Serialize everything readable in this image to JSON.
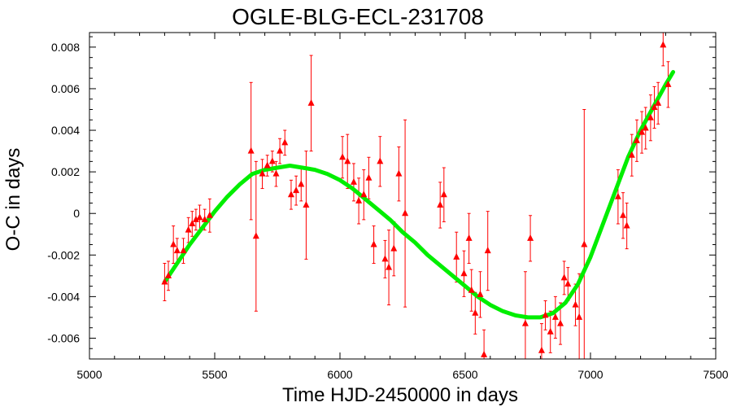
{
  "chart_data": {
    "type": "scatter",
    "title": "OGLE-BLG-ECL-231708",
    "xlabel": "Time HJD-2450000 in days",
    "ylabel": "O-C in days",
    "xlim": [
      5000,
      7500
    ],
    "ylim": [
      -0.007,
      0.0087
    ],
    "xticks": [
      "5000",
      "5500",
      "6000",
      "6500",
      "7000",
      "7500"
    ],
    "yticks": [
      "-0.006",
      "-0.004",
      "-0.002",
      "0",
      "0.002",
      "0.004",
      "0.006",
      "0.008"
    ],
    "grid": false,
    "colors": {
      "points": "#ff0000",
      "fit": "#00ee00",
      "axes": "#000000"
    },
    "series": [
      {
        "kind": "points-with-errorbars",
        "points": [
          {
            "x": 5300,
            "y": -0.0033,
            "err": 0.0009
          },
          {
            "x": 5315,
            "y": -0.003,
            "err": 0.0007
          },
          {
            "x": 5335,
            "y": -0.0015,
            "err": 0.0009
          },
          {
            "x": 5350,
            "y": -0.0018,
            "err": 0.0006
          },
          {
            "x": 5375,
            "y": -0.0018,
            "err": 0.0006
          },
          {
            "x": 5395,
            "y": -0.0008,
            "err": 0.0006
          },
          {
            "x": 5410,
            "y": -0.0005,
            "err": 0.0006
          },
          {
            "x": 5425,
            "y": -0.0003,
            "err": 0.0005
          },
          {
            "x": 5440,
            "y": -0.0002,
            "err": 0.0006
          },
          {
            "x": 5460,
            "y": -0.0003,
            "err": 0.0005
          },
          {
            "x": 5480,
            "y": -0.0001,
            "err": 0.0008
          },
          {
            "x": 5645,
            "y": 0.003,
            "err": 0.0033
          },
          {
            "x": 5665,
            "y": -0.0011,
            "err": 0.0036
          },
          {
            "x": 5690,
            "y": 0.0019,
            "err": 0.0007
          },
          {
            "x": 5710,
            "y": 0.0023,
            "err": 0.0005
          },
          {
            "x": 5730,
            "y": 0.0025,
            "err": 0.0005
          },
          {
            "x": 5745,
            "y": 0.0019,
            "err": 0.0006
          },
          {
            "x": 5760,
            "y": 0.003,
            "err": 0.0006
          },
          {
            "x": 5780,
            "y": 0.0034,
            "err": 0.0006
          },
          {
            "x": 5805,
            "y": 0.0009,
            "err": 0.0007
          },
          {
            "x": 5825,
            "y": 0.0011,
            "err": 0.0007
          },
          {
            "x": 5845,
            "y": 0.0014,
            "err": 0.0008
          },
          {
            "x": 5865,
            "y": 0.0004,
            "err": 0.0026
          },
          {
            "x": 5885,
            "y": 0.0053,
            "err": 0.0023
          },
          {
            "x": 6010,
            "y": 0.0027,
            "err": 0.001
          },
          {
            "x": 6030,
            "y": 0.0025,
            "err": 0.0013
          },
          {
            "x": 6055,
            "y": 0.0015,
            "err": 0.0009
          },
          {
            "x": 6075,
            "y": 0.0006,
            "err": 0.0011
          },
          {
            "x": 6095,
            "y": 0.0009,
            "err": 0.0012
          },
          {
            "x": 6115,
            "y": 0.0017,
            "err": 0.001
          },
          {
            "x": 6135,
            "y": -0.0015,
            "err": 0.0009
          },
          {
            "x": 6160,
            "y": 0.0025,
            "err": 0.0012
          },
          {
            "x": 6180,
            "y": -0.0022,
            "err": 0.0009
          },
          {
            "x": 6195,
            "y": -0.0026,
            "err": 0.0018
          },
          {
            "x": 6215,
            "y": -0.0017,
            "err": 0.0013
          },
          {
            "x": 6235,
            "y": 0.0019,
            "err": 0.0013
          },
          {
            "x": 6260,
            "y": 0.0,
            "err": 0.0045
          },
          {
            "x": 6400,
            "y": 0.0004,
            "err": 0.0011
          },
          {
            "x": 6415,
            "y": 0.0009,
            "err": 0.0013
          },
          {
            "x": 6465,
            "y": -0.0021,
            "err": 0.0012
          },
          {
            "x": 6495,
            "y": -0.0029,
            "err": 0.0011
          },
          {
            "x": 6515,
            "y": -0.0012,
            "err": 0.0012
          },
          {
            "x": 6525,
            "y": -0.0037,
            "err": 0.001
          },
          {
            "x": 6540,
            "y": -0.0048,
            "err": 0.001
          },
          {
            "x": 6560,
            "y": -0.0039,
            "err": 0.0011
          },
          {
            "x": 6575,
            "y": -0.0068,
            "err": 0.0012
          },
          {
            "x": 6590,
            "y": -0.0018,
            "err": 0.0019
          },
          {
            "x": 6740,
            "y": -0.0053,
            "err": 0.0025
          },
          {
            "x": 6760,
            "y": -0.0012,
            "err": 0.0011
          },
          {
            "x": 6805,
            "y": -0.0066,
            "err": 0.0013
          },
          {
            "x": 6820,
            "y": -0.0049,
            "err": 0.0007
          },
          {
            "x": 6840,
            "y": -0.0057,
            "err": 0.001
          },
          {
            "x": 6860,
            "y": -0.005,
            "err": 0.001
          },
          {
            "x": 6880,
            "y": -0.0053,
            "err": 0.001
          },
          {
            "x": 6895,
            "y": -0.0031,
            "err": 0.0008
          },
          {
            "x": 6910,
            "y": -0.0034,
            "err": 0.0008
          },
          {
            "x": 6940,
            "y": -0.0044,
            "err": 0.001
          },
          {
            "x": 6955,
            "y": -0.005,
            "err": 0.0021
          },
          {
            "x": 6975,
            "y": -0.0015,
            "err": 0.0065
          },
          {
            "x": 7110,
            "y": 0.0008,
            "err": 0.0013
          },
          {
            "x": 7130,
            "y": -0.0001,
            "err": 0.0011
          },
          {
            "x": 7145,
            "y": -0.0006,
            "err": 0.0011
          },
          {
            "x": 7165,
            "y": 0.0028,
            "err": 0.001
          },
          {
            "x": 7185,
            "y": 0.0035,
            "err": 0.001
          },
          {
            "x": 7205,
            "y": 0.0039,
            "err": 0.001
          },
          {
            "x": 7220,
            "y": 0.0041,
            "err": 0.001
          },
          {
            "x": 7240,
            "y": 0.0046,
            "err": 0.0011
          },
          {
            "x": 7255,
            "y": 0.0051,
            "err": 0.001
          },
          {
            "x": 7270,
            "y": 0.0053,
            "err": 0.001
          },
          {
            "x": 7290,
            "y": 0.0081,
            "err": 0.001
          },
          {
            "x": 7310,
            "y": 0.0062,
            "err": 0.0011
          }
        ]
      },
      {
        "kind": "fit-line",
        "x": [
          5300,
          5350,
          5400,
          5450,
          5500,
          5550,
          5600,
          5650,
          5700,
          5750,
          5800,
          5850,
          5900,
          5950,
          6000,
          6050,
          6100,
          6150,
          6200,
          6250,
          6300,
          6350,
          6400,
          6450,
          6500,
          6550,
          6600,
          6650,
          6700,
          6750,
          6800,
          6850,
          6900,
          6950,
          7000,
          7050,
          7100,
          7150,
          7200,
          7250,
          7300,
          7330
        ],
        "y": [
          -0.0033,
          -0.0024,
          -0.0015,
          -0.0007,
          0.0001,
          0.0008,
          0.0014,
          0.0019,
          0.0021,
          0.0022,
          0.0023,
          0.0022,
          0.0021,
          0.0019,
          0.0016,
          0.0012,
          0.0007,
          0.0002,
          -0.0003,
          -0.0009,
          -0.0014,
          -0.002,
          -0.0025,
          -0.003,
          -0.0035,
          -0.004,
          -0.0044,
          -0.0047,
          -0.0049,
          -0.005,
          -0.005,
          -0.0048,
          -0.0043,
          -0.0034,
          -0.0021,
          -0.0005,
          0.0011,
          0.0027,
          0.004,
          0.0051,
          0.0062,
          0.0068
        ]
      }
    ]
  }
}
